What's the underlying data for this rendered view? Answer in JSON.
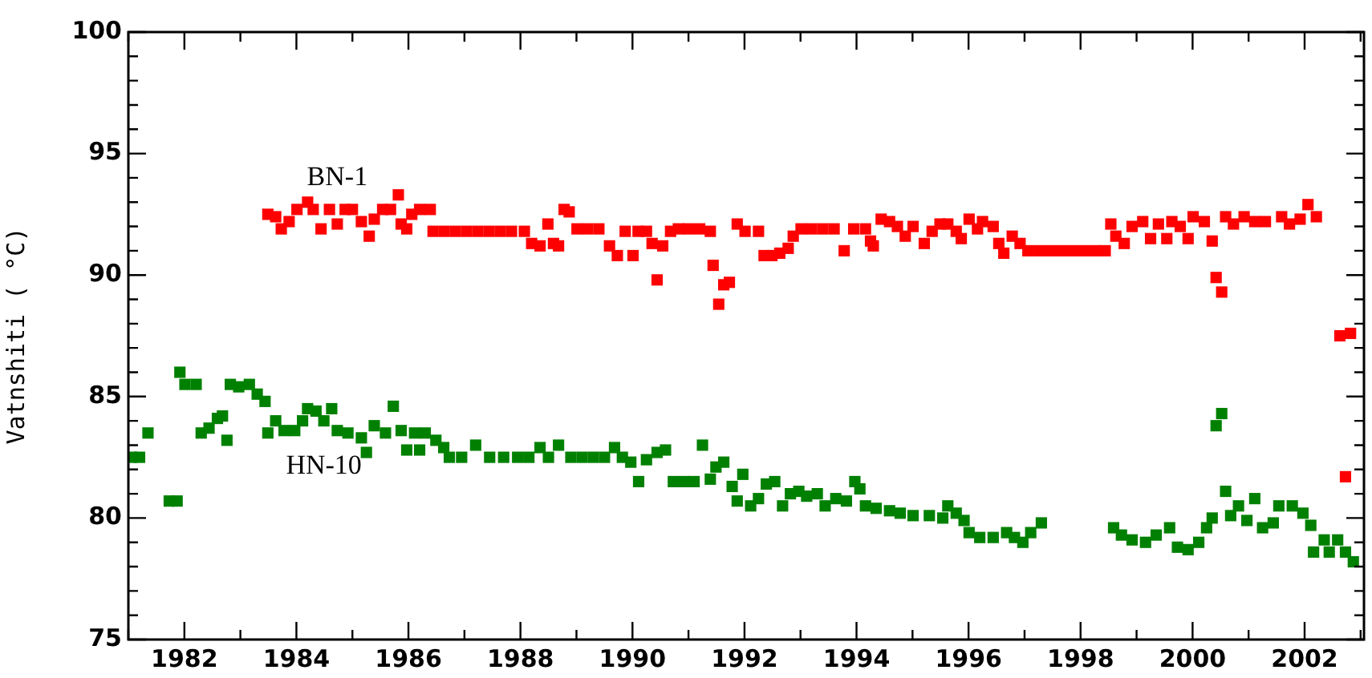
{
  "chart_data": {
    "type": "scatter",
    "ylabel": "Vatnshiti ( °C)",
    "marker": "square",
    "xlim": [
      1981,
      2003.06
    ],
    "xticks": [
      {
        "value": 1981,
        "label": null
      },
      1982,
      {
        "value": 1983,
        "label": null
      },
      1984,
      {
        "value": 1985,
        "label": null
      },
      1986,
      {
        "value": 1987,
        "label": null
      },
      1988,
      {
        "value": 1989,
        "label": null
      },
      1990,
      {
        "value": 1991,
        "label": null
      },
      1992,
      {
        "value": 1993,
        "label": null
      },
      1994,
      {
        "value": 1995,
        "label": null
      },
      1996,
      {
        "value": 1997,
        "label": null
      },
      1998,
      {
        "value": 1999,
        "label": null
      },
      2000,
      {
        "value": 2001,
        "label": null
      },
      2002,
      {
        "value": 2003,
        "label": null
      }
    ],
    "ylim": [
      75,
      100
    ],
    "yticks": [
      75,
      {
        "value": 76,
        "label": null
      },
      {
        "value": 77,
        "label": null
      },
      {
        "value": 78,
        "label": null
      },
      {
        "value": 79,
        "label": null
      },
      80,
      {
        "value": 81,
        "label": null
      },
      {
        "value": 82,
        "label": null
      },
      {
        "value": 83,
        "label": null
      },
      {
        "value": 84,
        "label": null
      },
      85,
      {
        "value": 86,
        "label": null
      },
      {
        "value": 87,
        "label": null
      },
      {
        "value": 88,
        "label": null
      },
      {
        "value": 89,
        "label": null
      },
      90,
      {
        "value": 91,
        "label": null
      },
      {
        "value": 92,
        "label": null
      },
      {
        "value": 93,
        "label": null
      },
      {
        "value": 94,
        "label": null
      },
      95,
      {
        "value": 96,
        "label": null
      },
      {
        "value": 97,
        "label": null
      },
      {
        "value": 98,
        "label": null
      },
      {
        "value": 99,
        "label": null
      },
      100
    ],
    "series": [
      {
        "name": "BN-1",
        "color": "#ff0000",
        "x": [
          1983.49,
          1983.63,
          1983.73,
          1983.87,
          1984.01,
          1984.2,
          1984.3,
          1984.44,
          1984.59,
          1984.73,
          1984.87,
          1985.0,
          1985.16,
          1985.3,
          1985.39,
          1985.54,
          1985.68,
          1985.82,
          1985.87,
          1985.97,
          1986.06,
          1986.2,
          1986.39,
          1986.44,
          1986.64,
          1986.84,
          1987.04,
          1987.24,
          1987.44,
          1987.64,
          1987.84,
          1988.07,
          1988.2,
          1988.35,
          1988.49,
          1988.59,
          1988.68,
          1988.78,
          1988.87,
          1989.01,
          1989.2,
          1989.4,
          1989.59,
          1989.73,
          1989.87,
          1990.01,
          1990.1,
          1990.25,
          1990.35,
          1990.44,
          1990.54,
          1990.68,
          1990.82,
          1991.0,
          1991.2,
          1991.39,
          1991.44,
          1991.54,
          1991.63,
          1991.73,
          1991.87,
          1992.01,
          1992.25,
          1992.35,
          1992.49,
          1992.63,
          1992.78,
          1992.87,
          1993.01,
          1993.2,
          1993.4,
          1993.6,
          1993.78,
          1993.95,
          1994.16,
          1994.25,
          1994.3,
          1994.44,
          1994.59,
          1994.73,
          1994.87,
          1995.01,
          1995.21,
          1995.35,
          1995.49,
          1995.63,
          1995.78,
          1995.87,
          1996.01,
          1996.16,
          1996.25,
          1996.44,
          1996.54,
          1996.63,
          1996.78,
          1996.92,
          1997.06,
          1997.26,
          1997.46,
          1997.66,
          1997.86,
          1998.06,
          1998.26,
          1998.44,
          1998.54,
          1998.63,
          1998.78,
          1998.92,
          1999.11,
          1999.25,
          1999.39,
          1999.54,
          1999.63,
          1999.78,
          1999.92,
          2000.01,
          2000.21,
          2000.35,
          2000.42,
          2000.52,
          2000.59,
          2000.73,
          2000.92,
          2001.11,
          2001.3,
          2001.59,
          2001.73,
          2001.92,
          2002.06,
          2002.21,
          2002.63,
          2002.73,
          2002.82
        ],
        "values": [
          92.5,
          92.4,
          91.9,
          92.2,
          92.7,
          93.0,
          92.7,
          91.9,
          92.7,
          92.1,
          92.7,
          92.7,
          92.2,
          91.6,
          92.3,
          92.7,
          92.7,
          93.3,
          92.1,
          91.9,
          92.5,
          92.7,
          92.7,
          91.8,
          91.8,
          91.8,
          91.8,
          91.8,
          91.8,
          91.8,
          91.8,
          91.8,
          91.3,
          91.2,
          92.1,
          91.3,
          91.2,
          92.7,
          92.6,
          91.9,
          91.9,
          91.9,
          91.2,
          90.8,
          91.8,
          90.8,
          91.8,
          91.8,
          91.3,
          89.8,
          91.2,
          91.8,
          91.9,
          91.9,
          91.9,
          91.8,
          90.4,
          88.8,
          89.6,
          89.7,
          92.1,
          91.8,
          91.8,
          90.8,
          90.8,
          90.9,
          91.1,
          91.6,
          91.9,
          91.9,
          91.9,
          91.9,
          91.0,
          91.9,
          91.9,
          91.4,
          91.2,
          92.3,
          92.2,
          92.0,
          91.6,
          92.0,
          91.3,
          91.8,
          92.1,
          92.1,
          91.8,
          91.5,
          92.3,
          91.9,
          92.2,
          92.0,
          91.3,
          90.9,
          91.6,
          91.3,
          91.0,
          91.0,
          91.0,
          91.0,
          91.0,
          91.0,
          91.0,
          91.0,
          92.1,
          91.6,
          91.3,
          92.0,
          92.2,
          91.5,
          92.1,
          91.5,
          92.2,
          92.0,
          91.5,
          92.4,
          92.2,
          91.4,
          89.9,
          89.3,
          92.4,
          92.1,
          92.4,
          92.2,
          92.2,
          92.4,
          92.1,
          92.3,
          92.9,
          92.4,
          87.5,
          81.7,
          87.6
        ]
      },
      {
        "name": "HN-10",
        "color": "#008000",
        "x": [
          1981.06,
          1981.2,
          1981.35,
          1981.73,
          1981.87,
          1981.92,
          1982.01,
          1982.21,
          1982.3,
          1982.44,
          1982.59,
          1982.68,
          1982.76,
          1982.82,
          1982.97,
          1983.16,
          1983.3,
          1983.44,
          1983.49,
          1983.63,
          1983.78,
          1983.97,
          1984.11,
          1984.2,
          1984.35,
          1984.49,
          1984.63,
          1984.73,
          1984.92,
          1985.16,
          1985.25,
          1985.39,
          1985.59,
          1985.73,
          1985.87,
          1985.97,
          1986.11,
          1986.2,
          1986.3,
          1986.49,
          1986.63,
          1986.73,
          1986.95,
          1987.2,
          1987.45,
          1987.7,
          1987.95,
          1988.15,
          1988.35,
          1988.5,
          1988.68,
          1988.9,
          1989.1,
          1989.3,
          1989.5,
          1989.68,
          1989.82,
          1989.97,
          1990.11,
          1990.25,
          1990.44,
          1990.59,
          1990.73,
          1990.92,
          1991.1,
          1991.25,
          1991.39,
          1991.49,
          1991.63,
          1991.78,
          1991.87,
          1991.97,
          1992.11,
          1992.25,
          1992.39,
          1992.54,
          1992.68,
          1992.82,
          1992.97,
          1993.11,
          1993.3,
          1993.44,
          1993.63,
          1993.82,
          1993.97,
          1994.06,
          1994.16,
          1994.35,
          1994.59,
          1994.78,
          1995.01,
          1995.3,
          1995.54,
          1995.63,
          1995.78,
          1995.92,
          1996.01,
          1996.2,
          1996.44,
          1996.68,
          1996.82,
          1996.97,
          1997.11,
          1997.3,
          1998.59,
          1998.73,
          1998.92,
          1999.16,
          1999.35,
          1999.59,
          1999.73,
          1999.92,
          2000.11,
          2000.25,
          2000.35,
          2000.42,
          2000.52,
          2000.59,
          2000.68,
          2000.82,
          2000.97,
          2001.11,
          2001.25,
          2001.44,
          2001.54,
          2001.78,
          2001.97,
          2002.11,
          2002.16,
          2002.35,
          2002.44,
          2002.59,
          2002.73,
          2002.87
        ],
        "values": [
          82.5,
          82.5,
          83.5,
          80.7,
          80.7,
          86.0,
          85.5,
          85.5,
          83.5,
          83.7,
          84.1,
          84.2,
          83.2,
          85.5,
          85.4,
          85.5,
          85.1,
          84.8,
          83.5,
          84.0,
          83.6,
          83.6,
          84.0,
          84.5,
          84.4,
          84.0,
          84.5,
          83.6,
          83.5,
          83.3,
          82.7,
          83.8,
          83.5,
          84.6,
          83.6,
          82.8,
          83.5,
          82.8,
          83.5,
          83.2,
          82.9,
          82.5,
          82.5,
          83.0,
          82.5,
          82.5,
          82.5,
          82.5,
          82.9,
          82.5,
          83.0,
          82.5,
          82.5,
          82.5,
          82.5,
          82.9,
          82.5,
          82.3,
          81.5,
          82.4,
          82.7,
          82.8,
          81.5,
          81.5,
          81.5,
          83.0,
          81.6,
          82.1,
          82.3,
          81.3,
          80.7,
          81.8,
          80.5,
          80.8,
          81.4,
          81.5,
          80.5,
          81.0,
          81.1,
          80.9,
          81.0,
          80.5,
          80.8,
          80.7,
          81.5,
          81.2,
          80.5,
          80.4,
          80.3,
          80.2,
          80.1,
          80.1,
          80.0,
          80.5,
          80.2,
          79.9,
          79.4,
          79.2,
          79.2,
          79.4,
          79.2,
          79.0,
          79.4,
          79.8,
          79.6,
          79.3,
          79.1,
          79.0,
          79.3,
          79.6,
          78.8,
          78.7,
          79.0,
          79.6,
          80.0,
          83.8,
          84.3,
          81.1,
          80.1,
          80.5,
          79.9,
          80.8,
          79.6,
          79.8,
          80.5,
          80.5,
          80.2,
          79.7,
          78.6,
          79.1,
          78.6,
          79.1,
          78.6,
          78.2
        ]
      }
    ]
  }
}
